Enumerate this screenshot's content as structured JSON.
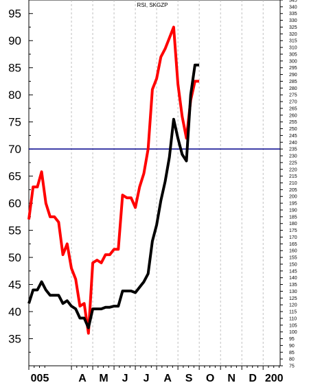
{
  "chart_data": {
    "type": "line",
    "title": "RSI, SKGZP",
    "left_axis": {
      "min": 30,
      "max": 97.5,
      "ticks": [
        35,
        40,
        45,
        50,
        55,
        60,
        65,
        70,
        75,
        80,
        85,
        90,
        95
      ]
    },
    "right_axis": {
      "min": 75,
      "max": 345,
      "step": 5
    },
    "x_range": [
      0,
      11.8
    ],
    "months": [
      {
        "label": "005",
        "x": 0
      },
      {
        "label": "A",
        "x": 2
      },
      {
        "label": "M",
        "x": 3
      },
      {
        "label": "J",
        "x": 4
      },
      {
        "label": "J",
        "x": 5
      },
      {
        "label": "A",
        "x": 6
      },
      {
        "label": "S",
        "x": 7
      },
      {
        "label": "O",
        "x": 8
      },
      {
        "label": "N",
        "x": 9
      },
      {
        "label": "D",
        "x": 10
      },
      {
        "label": "200",
        "x": 11
      }
    ],
    "reference_line": {
      "value": 70,
      "color": "#00008b"
    },
    "grid": true,
    "series": [
      {
        "color": "#ff0000",
        "axis": "left",
        "points": [
          [
            0.0,
            57.0
          ],
          [
            0.2,
            63.0
          ],
          [
            0.4,
            63.0
          ],
          [
            0.6,
            65.8
          ],
          [
            0.8,
            60.0
          ],
          [
            1.0,
            57.5
          ],
          [
            1.2,
            57.5
          ],
          [
            1.4,
            56.5
          ],
          [
            1.6,
            50.5
          ],
          [
            1.8,
            52.5
          ],
          [
            2.0,
            48.0
          ],
          [
            2.2,
            46.0
          ],
          [
            2.4,
            41.0
          ],
          [
            2.6,
            41.5
          ],
          [
            2.8,
            36.0
          ],
          [
            3.0,
            49.0
          ],
          [
            3.2,
            49.5
          ],
          [
            3.4,
            49.0
          ],
          [
            3.6,
            50.5
          ],
          [
            3.8,
            50.5
          ],
          [
            4.0,
            51.5
          ],
          [
            4.2,
            51.5
          ],
          [
            4.4,
            61.5
          ],
          [
            4.6,
            61.0
          ],
          [
            4.8,
            61.0
          ],
          [
            5.0,
            59.2
          ],
          [
            5.2,
            63.0
          ],
          [
            5.4,
            65.5
          ],
          [
            5.6,
            70.0
          ],
          [
            5.8,
            81.0
          ],
          [
            6.0,
            83.0
          ],
          [
            6.2,
            87.0
          ],
          [
            6.4,
            88.5
          ],
          [
            6.6,
            90.5
          ],
          [
            6.8,
            92.5
          ],
          [
            7.0,
            82.0
          ],
          [
            7.2,
            76.0
          ],
          [
            7.4,
            72.0
          ],
          [
            7.6,
            79.0
          ],
          [
            7.8,
            82.5
          ],
          [
            8.0,
            82.5
          ]
        ]
      },
      {
        "color": "#000000",
        "axis": "left",
        "points": [
          [
            0.0,
            41.5
          ],
          [
            0.2,
            44.0
          ],
          [
            0.4,
            44.0
          ],
          [
            0.6,
            45.5
          ],
          [
            0.8,
            44.0
          ],
          [
            1.0,
            43.0
          ],
          [
            1.2,
            43.0
          ],
          [
            1.4,
            43.0
          ],
          [
            1.6,
            41.5
          ],
          [
            1.8,
            42.0
          ],
          [
            2.0,
            41.0
          ],
          [
            2.2,
            40.5
          ],
          [
            2.4,
            38.8
          ],
          [
            2.6,
            38.8
          ],
          [
            2.8,
            37.0
          ],
          [
            3.0,
            40.5
          ],
          [
            3.2,
            40.5
          ],
          [
            3.4,
            40.5
          ],
          [
            3.6,
            40.8
          ],
          [
            3.8,
            40.8
          ],
          [
            4.0,
            41.0
          ],
          [
            4.2,
            41.0
          ],
          [
            4.4,
            43.8
          ],
          [
            4.6,
            43.8
          ],
          [
            4.8,
            43.8
          ],
          [
            5.0,
            43.5
          ],
          [
            5.2,
            44.5
          ],
          [
            5.4,
            45.5
          ],
          [
            5.6,
            47.0
          ],
          [
            5.8,
            53.0
          ],
          [
            6.0,
            56.0
          ],
          [
            6.2,
            60.5
          ],
          [
            6.4,
            64.0
          ],
          [
            6.6,
            68.5
          ],
          [
            6.8,
            75.5
          ],
          [
            7.0,
            72.0
          ],
          [
            7.2,
            69.0
          ],
          [
            7.4,
            67.8
          ],
          [
            7.6,
            80.0
          ],
          [
            7.8,
            85.5
          ],
          [
            8.0,
            85.5
          ]
        ]
      }
    ]
  }
}
